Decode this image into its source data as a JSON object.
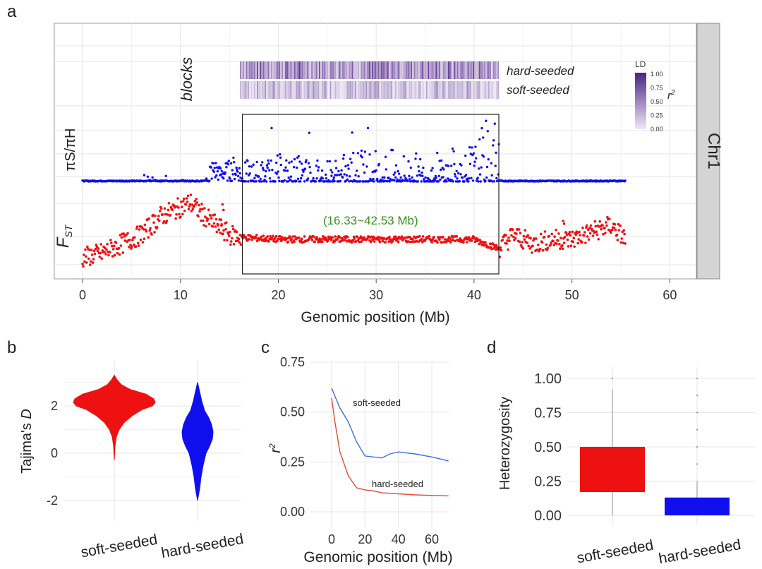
{
  "panels": {
    "a": "a",
    "b": "b",
    "c": "c",
    "d": "d"
  },
  "colors": {
    "red": "#ee1111",
    "blue": "#1010ee",
    "ld": "#5b2e91",
    "green": "#3a8f1d",
    "strip": "#d4d4d4"
  },
  "chart_data": [
    {
      "type": "scatter",
      "panel": "a",
      "strip_label": "Chr1",
      "row_labels": {
        "blocks": "blocks",
        "pi": "πS/πH",
        "fst_main": "F",
        "fst_sub": "ST"
      },
      "block_labels": [
        "hard-seeded",
        "soft-seeded"
      ],
      "legend": {
        "title": "LD",
        "label": "r",
        "label_sup": "2",
        "ticks": [
          "1.00",
          "0.75",
          "0.50",
          "0.25",
          "0.00"
        ]
      },
      "region_label": "(16.33~42.53 Mb)",
      "region": [
        16.33,
        42.53
      ],
      "xlabel": "Genomic position (Mb)",
      "xlim": [
        -2,
        63
      ],
      "xticks": [
        "0",
        "10",
        "20",
        "30",
        "40",
        "50",
        "60"
      ],
      "series": [
        {
          "name": "πS/πH",
          "x": [
            0,
            5,
            7,
            10,
            12,
            13,
            13.5,
            14,
            15,
            15.5,
            16.3,
            20,
            25,
            30,
            35,
            40,
            42,
            42.5,
            44,
            50,
            55.5
          ],
          "y": [
            0.02,
            0.02,
            0.04,
            0.05,
            0.06,
            0.22,
            0.28,
            0.18,
            0.25,
            0.3,
            0.15,
            0.2,
            0.18,
            0.25,
            0.2,
            0.3,
            0.55,
            0.45,
            0.05,
            0.02,
            0.02
          ]
        },
        {
          "name": "FST",
          "x": [
            0,
            2,
            4,
            6,
            8,
            10,
            11,
            13,
            15,
            16.3,
            20,
            25,
            30,
            35,
            40,
            42.5,
            44,
            46,
            48,
            50,
            52,
            54,
            55.5
          ],
          "y": [
            0.1,
            0.15,
            0.25,
            0.35,
            0.55,
            0.65,
            0.7,
            0.5,
            0.35,
            0.32,
            0.3,
            0.3,
            0.3,
            0.3,
            0.3,
            0.2,
            0.35,
            0.25,
            0.3,
            0.3,
            0.38,
            0.45,
            0.3
          ]
        }
      ]
    },
    {
      "type": "violin",
      "panel": "b",
      "categories": [
        "soft-seeded",
        "hard-seeded"
      ],
      "ylabel_main": "Tajima's ",
      "ylabel_ital": "D",
      "yticks": [
        "2",
        "0",
        "-2"
      ],
      "ylim": [
        -2.4,
        3.4
      ],
      "series": [
        {
          "name": "soft-seeded",
          "min": -0.3,
          "max": 3.3,
          "median": 2.2
        },
        {
          "name": "hard-seeded",
          "min": -2.0,
          "max": 3.0,
          "median": 0.8
        }
      ]
    },
    {
      "type": "line",
      "panel": "c",
      "xlabel": "Genomic position (Mb)",
      "ylabel": "r",
      "ylabel_sup": "2",
      "xticks": [
        "0",
        "20",
        "40",
        "60"
      ],
      "yticks": [
        "0.75",
        "0.50",
        "0.25",
        "0.00"
      ],
      "xlim": [
        -4,
        71
      ],
      "ylim": [
        -0.05,
        0.75
      ],
      "series": [
        {
          "name": "soft-seeded",
          "x": [
            0,
            2,
            5,
            10,
            15,
            20,
            25,
            30,
            35,
            40,
            50,
            60,
            70
          ],
          "y": [
            0.62,
            0.58,
            0.52,
            0.45,
            0.35,
            0.28,
            0.275,
            0.27,
            0.29,
            0.3,
            0.29,
            0.275,
            0.255
          ]
        },
        {
          "name": "hard-seeded",
          "x": [
            0,
            2,
            5,
            10,
            15,
            20,
            25,
            30,
            40,
            50,
            60,
            70
          ],
          "y": [
            0.57,
            0.45,
            0.3,
            0.18,
            0.12,
            0.11,
            0.105,
            0.095,
            0.09,
            0.085,
            0.082,
            0.08
          ]
        }
      ]
    },
    {
      "type": "box",
      "panel": "d",
      "ylabel": "Heterozygosity",
      "categories": [
        "soft-seeded",
        "hard-seeded"
      ],
      "yticks": [
        "1.00",
        "0.75",
        "0.50",
        "0.25",
        "0.00"
      ],
      "ylim": [
        -0.05,
        1.05
      ],
      "series": [
        {
          "name": "soft-seeded",
          "q1": 0.17,
          "median": 0.5,
          "q3": 0.5,
          "whisker_low": 0.0,
          "whisker_high": 0.92,
          "outliers": [
            1.0
          ]
        },
        {
          "name": "hard-seeded",
          "q1": 0.0,
          "median": 0.0,
          "q3": 0.13,
          "whisker_low": 0.0,
          "whisker_high": 0.25,
          "outliers": [
            0.375,
            0.5,
            0.625,
            0.75,
            0.875,
            1.0
          ]
        }
      ]
    }
  ]
}
